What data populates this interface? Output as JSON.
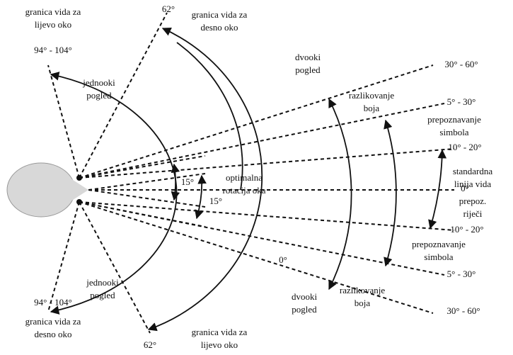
{
  "labels": [
    [
      "granica vida za",
      "lijevo oko"
    ],
    [
      "94° - 104°"
    ],
    [
      "62°"
    ],
    [
      "granica vida za",
      "desno oko"
    ],
    [
      "dvooki",
      "pogled"
    ],
    [
      "jednooki",
      "pogled"
    ],
    [
      "30° - 60°"
    ],
    [
      "razlikovanje",
      "boja"
    ],
    [
      "5° - 30°"
    ],
    [
      "prepoznavanje",
      "simbola"
    ],
    [
      "10° - 20°"
    ],
    [
      "standardna",
      "linija vida"
    ],
    [
      "0°"
    ],
    [
      "prepoz.",
      "riječi"
    ],
    [
      "10° - 20°"
    ],
    [
      "prepoznavanje",
      "simbola"
    ],
    [
      "5° - 30°"
    ],
    [
      "razlikovanje",
      "boja"
    ],
    [
      "30° - 60°"
    ],
    [
      "dvooki",
      "pogled"
    ],
    [
      "jednooki",
      "pogled"
    ],
    [
      "94° - 104°"
    ],
    [
      "granica vida za",
      "desno oko"
    ],
    [
      "62°"
    ],
    [
      "granica vida za",
      "lijevo oko"
    ],
    [
      "15°"
    ],
    [
      "15°"
    ],
    [
      "optimalna",
      "rotacija oka"
    ],
    [
      "0°"
    ]
  ]
}
